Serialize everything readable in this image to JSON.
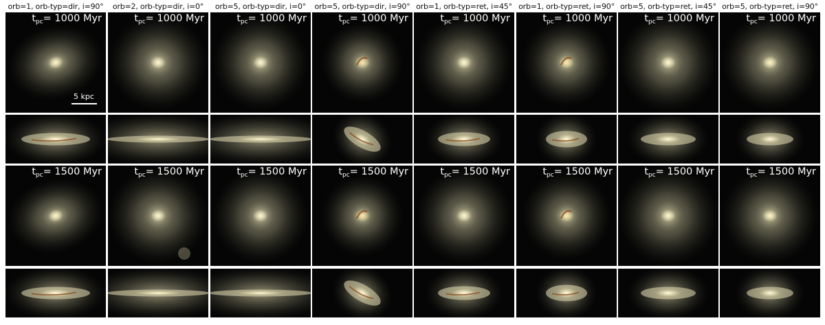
{
  "columns": [
    {
      "title": "orb=1, orb-typ=dir, i=90°",
      "face": {
        "tilt": -15,
        "rx": 26,
        "ry": 20,
        "arc": false,
        "core": "#fff4c8"
      },
      "edge": {
        "w": 50,
        "h": 9,
        "dust": true,
        "tilt": 0,
        "faint": false
      }
    },
    {
      "title": "orb=2, orb-typ=dir, i=0°",
      "face": {
        "tilt": 0,
        "rx": 27,
        "ry": 26,
        "arc": false,
        "core": "#fff6d0"
      },
      "edge": {
        "w": 75,
        "h": 5,
        "dust": false,
        "tilt": 0,
        "faint": false
      }
    },
    {
      "title": "orb=5, orb-typ=dir, i=0°",
      "face": {
        "tilt": 0,
        "rx": 26,
        "ry": 26,
        "arc": false,
        "core": "#fff6d0"
      },
      "edge": {
        "w": 75,
        "h": 5,
        "dust": false,
        "tilt": 0,
        "faint": false
      }
    },
    {
      "title": "orb=5, orb-typ=dir, i=90°",
      "face": {
        "tilt": 0,
        "rx": 22,
        "ry": 22,
        "arc": true,
        "core": "#f8e4a8"
      },
      "edge": {
        "w": 30,
        "h": 12,
        "dust": true,
        "tilt": 30,
        "faint": false
      }
    },
    {
      "title": "orb=1, orb-typ=ret, i=45°",
      "face": {
        "tilt": 0,
        "rx": 26,
        "ry": 26,
        "arc": false,
        "core": "#fff6d0"
      },
      "edge": {
        "w": 38,
        "h": 10,
        "dust": true,
        "tilt": 0,
        "faint": false
      }
    },
    {
      "title": "orb=1, orb-typ=ret, i=90°",
      "face": {
        "tilt": 0,
        "rx": 24,
        "ry": 24,
        "arc": true,
        "core": "#fbe8b0"
      },
      "edge": {
        "w": 30,
        "h": 12,
        "dust": true,
        "tilt": 0,
        "faint": false
      }
    },
    {
      "title": "orb=5, orb-typ=ret, i=45°",
      "face": {
        "tilt": 0,
        "rx": 27,
        "ry": 27,
        "arc": false,
        "core": "#fff6d0"
      },
      "edge": {
        "w": 40,
        "h": 9,
        "dust": false,
        "tilt": 0,
        "faint": false
      }
    },
    {
      "title": "orb=5, orb-typ=ret, i=90°",
      "face": {
        "tilt": 0,
        "rx": 26,
        "ry": 26,
        "arc": false,
        "core": "#fff4c8"
      },
      "edge": {
        "w": 34,
        "h": 9,
        "dust": false,
        "tilt": 0,
        "faint": false
      }
    }
  ],
  "rows": [
    {
      "type": "face",
      "time_label": {
        "t": "t",
        "sub": "pc",
        "rest": "= 1000 Myr"
      }
    },
    {
      "type": "edge",
      "time_label": null
    },
    {
      "type": "face",
      "time_label": {
        "t": "t",
        "sub": "pc",
        "rest": "= 1500 Myr"
      }
    },
    {
      "type": "edge",
      "time_label": null
    }
  ],
  "scale_bar": {
    "label": "5 kpc",
    "column": 0,
    "row": 0
  },
  "colors": {
    "background": "#050505",
    "glow": "#c9c7a0",
    "disk": "#e6dfb4",
    "dust": "#8a4a1c",
    "text": "#ffffff"
  }
}
